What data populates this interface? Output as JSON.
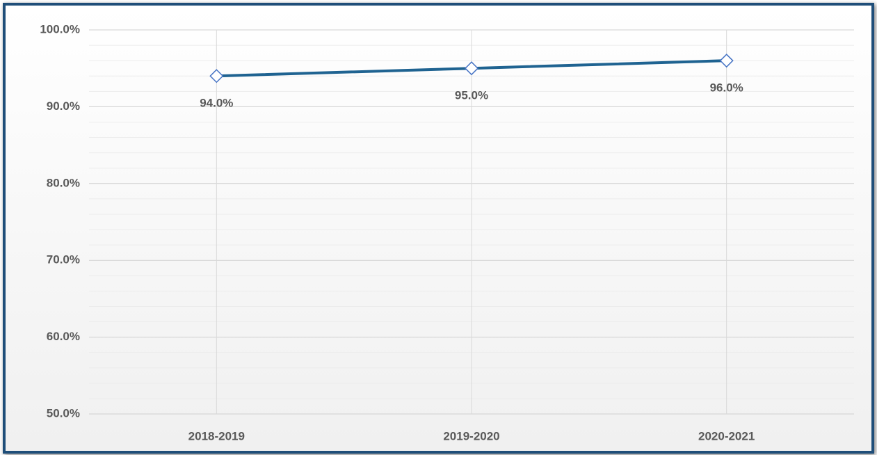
{
  "chart_data": {
    "type": "line",
    "categories": [
      "2018-2019",
      "2019-2020",
      "2020-2021"
    ],
    "series": [
      {
        "color": "#1f6391",
        "marker_color": "#4472c4",
        "values": [
          94,
          95,
          96
        ],
        "value_labels": [
          "94.0%",
          "95.0%",
          "96.0%"
        ]
      }
    ],
    "ylim": [
      50,
      100
    ],
    "yticks": [
      {
        "value": 50,
        "label": "50.0%"
      },
      {
        "value": 60,
        "label": "60.0%"
      },
      {
        "value": 70,
        "label": "70.0%"
      },
      {
        "value": 80,
        "label": "80.0%"
      },
      {
        "value": 90,
        "label": "90.0%"
      },
      {
        "value": 100,
        "label": "100.0%"
      }
    ],
    "yminorticks": [
      52,
      54,
      56,
      58,
      62,
      64,
      66,
      68,
      72,
      74,
      76,
      78,
      82,
      84,
      86,
      88,
      92,
      94,
      96,
      98
    ],
    "grid": true
  }
}
